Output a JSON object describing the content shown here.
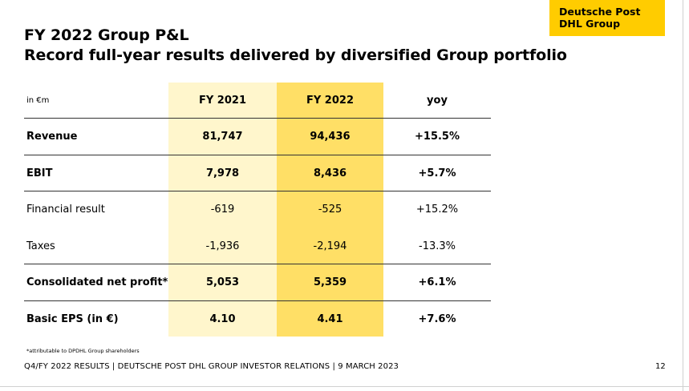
{
  "title": {
    "line1": "FY 2022 Group P&L",
    "line2": "Record full-year results delivered by diversified Group portfolio"
  },
  "brand": {
    "text": "Deutsche Post DHL Group",
    "color": "#ffcc00"
  },
  "table": {
    "unit": "in €m",
    "columns": [
      "FY 2021",
      "FY 2022",
      "yoy"
    ],
    "column_colors": {
      "FY 2021": "#fff6cc",
      "FY 2022": "#ffdf66"
    },
    "rows": [
      {
        "label": "Revenue",
        "fy2021": "81,747",
        "fy2022": "94,436",
        "yoy": "+15.5%",
        "bold": true
      },
      {
        "label": "EBIT",
        "fy2021": "7,978",
        "fy2022": "8,436",
        "yoy": "+5.7%",
        "bold": true
      },
      {
        "label": "Financial result",
        "fy2021": "-619",
        "fy2022": "-525",
        "yoy": "+15.2%",
        "bold": false
      },
      {
        "label": "Taxes",
        "fy2021": "-1,936",
        "fy2022": "-2,194",
        "yoy": "-13.3%",
        "bold": false
      },
      {
        "label": "Consolidated net profit*",
        "fy2021": "5,053",
        "fy2022": "5,359",
        "yoy": "+6.1%",
        "bold": true
      },
      {
        "label": "Basic EPS (in €)",
        "fy2021": "4.10",
        "fy2022": "4.41",
        "yoy": "+7.6%",
        "bold": true
      }
    ]
  },
  "footnote": "*attributable to DPDHL Group shareholders",
  "footer": "Q4/FY 2022 RESULTS | DEUTSCHE POST DHL GROUP INVESTOR RELATIONS | 9 MARCH 2023",
  "page_number": "12"
}
